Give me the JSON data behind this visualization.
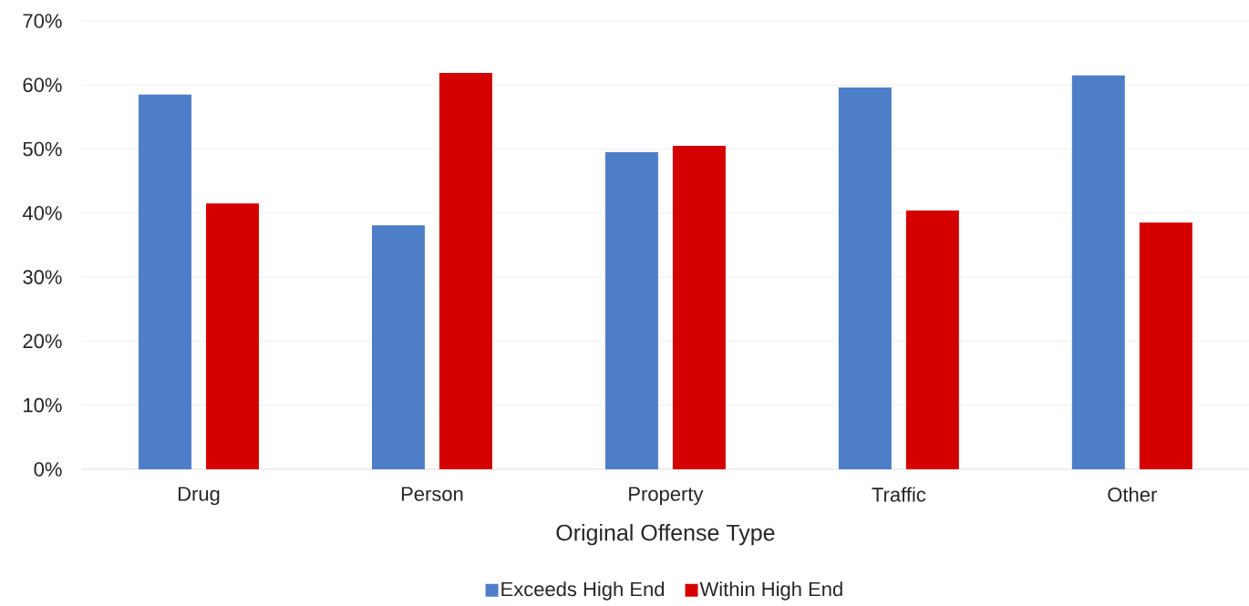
{
  "chart_data": {
    "type": "bar",
    "xlabel": "Original Offense Type",
    "categories": [
      "Drug",
      "Person",
      "Property",
      "Traffic",
      "Other"
    ],
    "series": [
      {
        "name": "Exceeds High End",
        "color": "#4e7ec8",
        "values": [
          58.5,
          38.1,
          49.5,
          59.6,
          61.5
        ]
      },
      {
        "name": "Within High End",
        "color": "#d40000",
        "values": [
          41.5,
          61.9,
          50.5,
          40.4,
          38.5
        ]
      }
    ],
    "ylim": [
      0,
      70
    ],
    "yticks": [
      {
        "value": 0,
        "label": "0%"
      },
      {
        "value": 10,
        "label": "10%"
      },
      {
        "value": 20,
        "label": "20%"
      },
      {
        "value": 30,
        "label": "30%"
      },
      {
        "value": 40,
        "label": "40%"
      },
      {
        "value": 50,
        "label": "50%"
      },
      {
        "value": 60,
        "label": "60%"
      },
      {
        "value": 70,
        "label": "70%"
      }
    ],
    "grid": "y",
    "legend": "bottom"
  }
}
